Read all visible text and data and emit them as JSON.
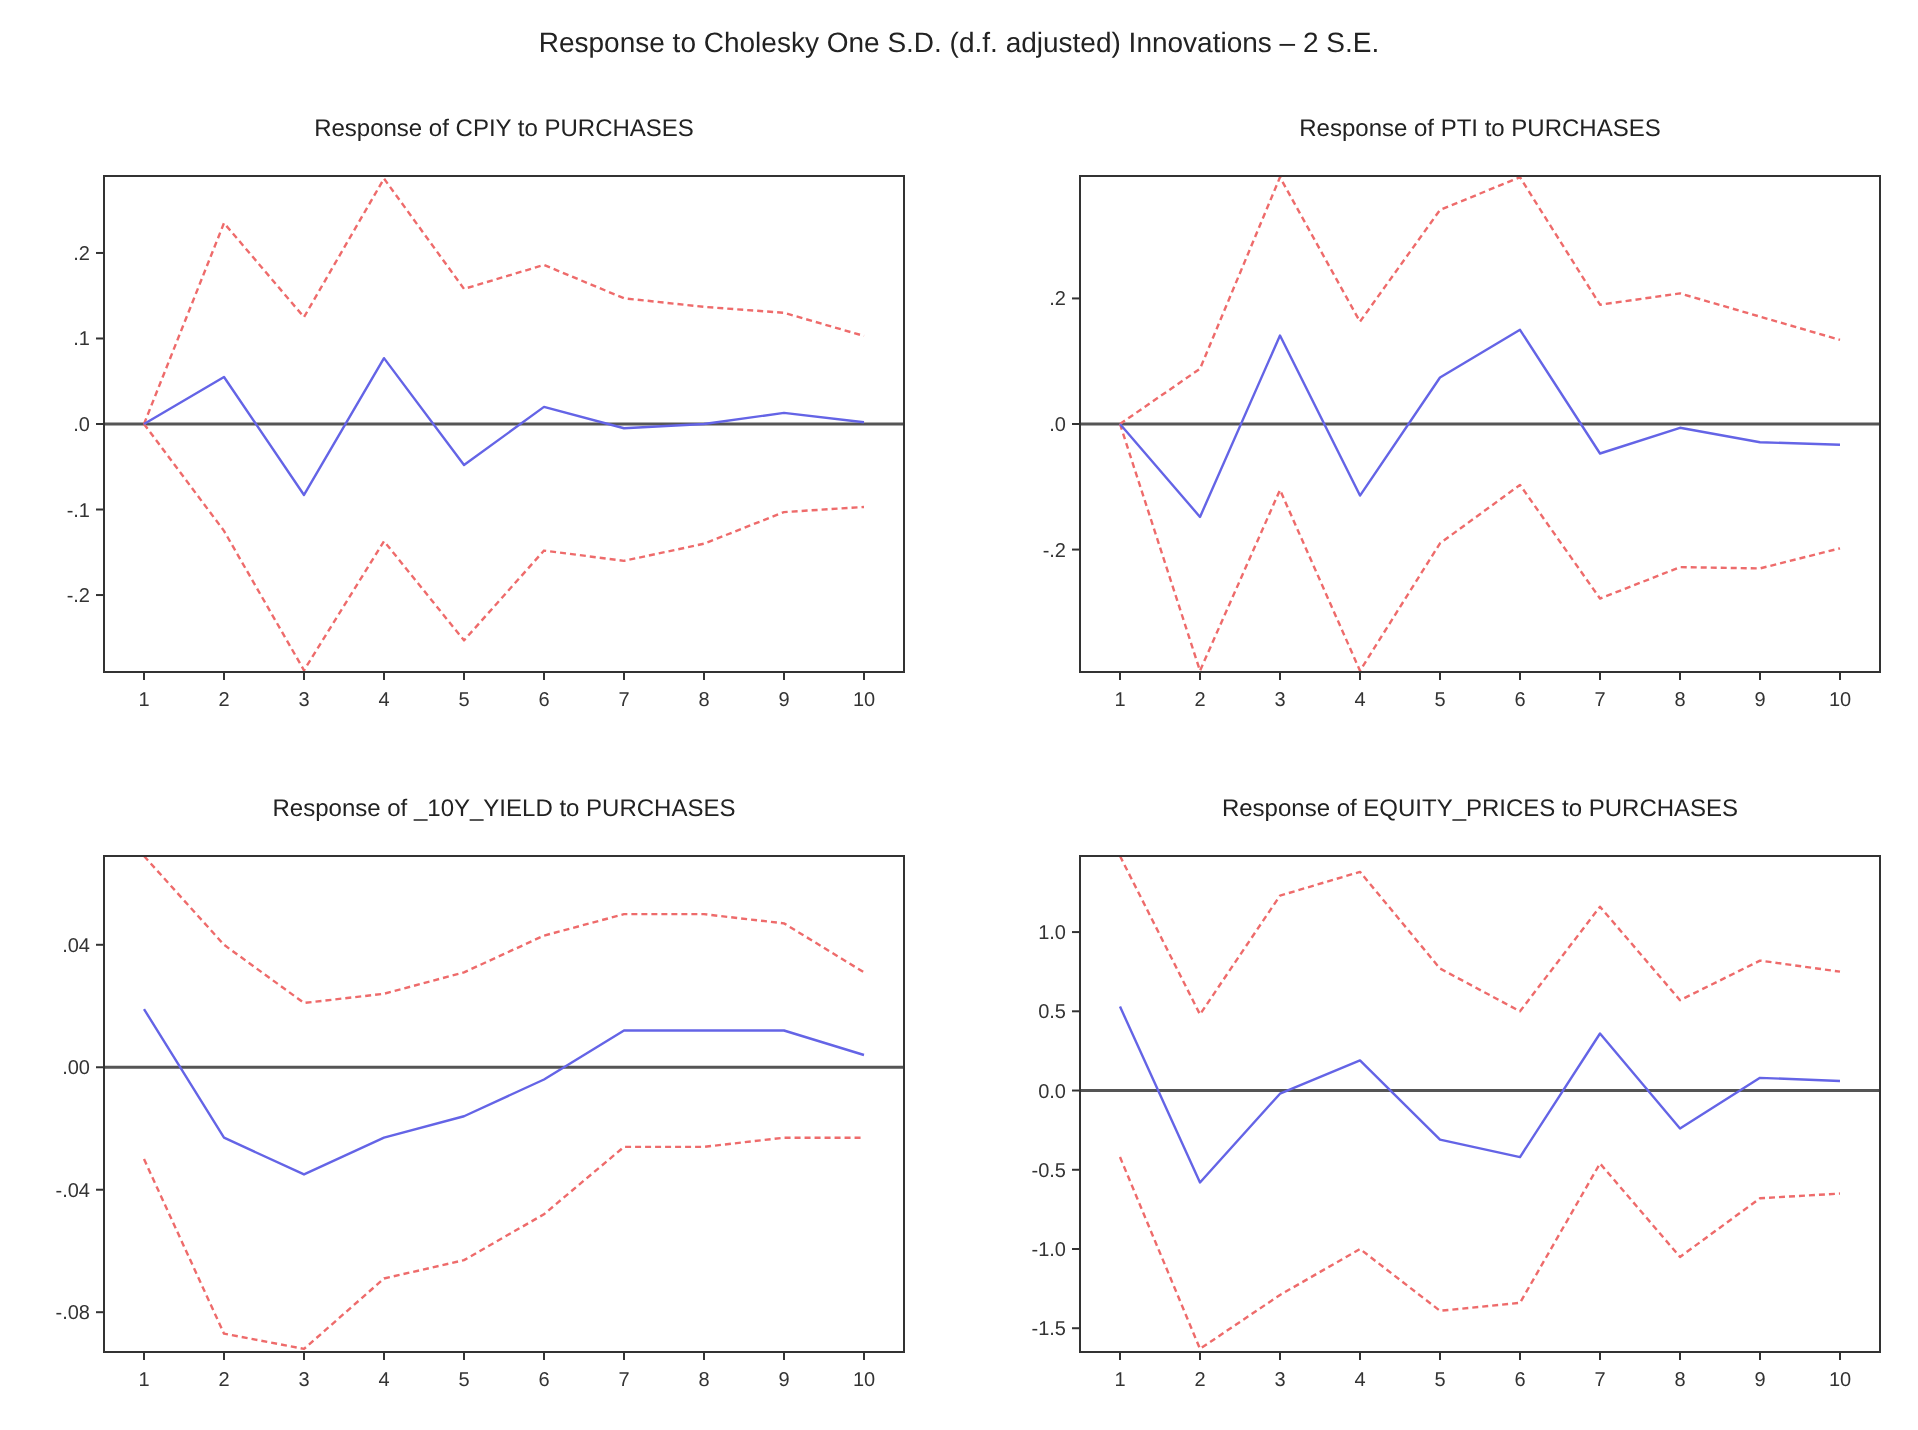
{
  "chart_data": [
    {
      "type": "other",
      "title": "Response to Cholesky One S.D. (d.f. adjusted) Innovations – 2 S.E."
    },
    {
      "type": "line",
      "title": "Response of CPIY to PURCHASES",
      "x": [
        1,
        2,
        3,
        4,
        5,
        6,
        7,
        8,
        9,
        10
      ],
      "xlim": [
        0.5,
        10.5
      ],
      "xticks": [
        1,
        2,
        3,
        4,
        5,
        6,
        7,
        8,
        9,
        10
      ],
      "ylim": [
        -0.29,
        0.29
      ],
      "yticks": [
        {
          "value": -0.2,
          "label": "-.2"
        },
        {
          "value": -0.1,
          "label": "-.1"
        },
        {
          "value": 0,
          "label": ".0"
        },
        {
          "value": 0.1,
          "label": ".1"
        },
        {
          "value": 0.2,
          "label": ".2"
        }
      ],
      "grid": false,
      "ref_lines": [
        {
          "axis": "y",
          "value": 0,
          "color": "#555555"
        }
      ],
      "series": [
        {
          "color": "#ee6b6b",
          "line_style": "dashed",
          "values": [
            0,
            0.235,
            0.125,
            0.287,
            0.158,
            0.186,
            0.147,
            0.137,
            0.13,
            0.103
          ]
        },
        {
          "color": "#ee6b6b",
          "line_style": "dashed",
          "values": [
            0,
            -0.125,
            -0.288,
            -0.137,
            -0.253,
            -0.148,
            -0.16,
            -0.14,
            -0.103,
            -0.097
          ]
        },
        {
          "color": "#6464e6",
          "line_style": "solid",
          "values": [
            0,
            0.055,
            -0.083,
            0.077,
            -0.048,
            0.02,
            -0.005,
            0,
            0.013,
            0.002
          ]
        }
      ]
    },
    {
      "type": "line",
      "title": "Response of PTI to PURCHASES",
      "x": [
        1,
        2,
        3,
        4,
        5,
        6,
        7,
        8,
        9,
        10
      ],
      "xlim": [
        0.5,
        10.5
      ],
      "xticks": [
        1,
        2,
        3,
        4,
        5,
        6,
        7,
        8,
        9,
        10
      ],
      "ylim": [
        -0.395,
        0.395
      ],
      "yticks": [
        {
          "value": -0.2,
          "label": "-.2"
        },
        {
          "value": 0,
          "label": ".0"
        },
        {
          "value": 0.2,
          "label": ".2"
        }
      ],
      "grid": false,
      "ref_lines": [
        {
          "axis": "y",
          "value": 0,
          "color": "#555555"
        }
      ],
      "series": [
        {
          "color": "#ee6b6b",
          "line_style": "dashed",
          "values": [
            0,
            0.088,
            0.393,
            0.163,
            0.341,
            0.393,
            0.19,
            0.208,
            0.171,
            0.134
          ]
        },
        {
          "color": "#ee6b6b",
          "line_style": "dashed",
          "values": [
            0,
            -0.393,
            -0.105,
            -0.393,
            -0.19,
            -0.097,
            -0.278,
            -0.228,
            -0.23,
            -0.198
          ]
        },
        {
          "color": "#6464e6",
          "line_style": "solid",
          "values": [
            0,
            -0.148,
            0.141,
            -0.114,
            0.074,
            0.15,
            -0.047,
            -0.006,
            -0.029,
            -0.033
          ]
        }
      ]
    },
    {
      "type": "line",
      "title": "Response of _10Y_YIELD to PURCHASES",
      "x": [
        1,
        2,
        3,
        4,
        5,
        6,
        7,
        8,
        9,
        10
      ],
      "xlim": [
        0.5,
        10.5
      ],
      "xticks": [
        1,
        2,
        3,
        4,
        5,
        6,
        7,
        8,
        9,
        10
      ],
      "ylim": [
        -0.093,
        0.069
      ],
      "yticks": [
        {
          "value": -0.08,
          "label": "-.08"
        },
        {
          "value": -0.04,
          "label": "-.04"
        },
        {
          "value": 0,
          "label": ".00"
        },
        {
          "value": 0.04,
          "label": ".04"
        }
      ],
      "grid": false,
      "ref_lines": [
        {
          "axis": "y",
          "value": 0,
          "color": "#555555"
        }
      ],
      "series": [
        {
          "color": "#ee6b6b",
          "line_style": "dashed",
          "values": [
            0.069,
            0.04,
            0.021,
            0.024,
            0.031,
            0.043,
            0.05,
            0.05,
            0.047,
            0.031
          ]
        },
        {
          "color": "#ee6b6b",
          "line_style": "dashed",
          "values": [
            -0.03,
            -0.087,
            -0.092,
            -0.069,
            -0.063,
            -0.048,
            -0.026,
            -0.026,
            -0.023,
            -0.023
          ]
        },
        {
          "color": "#6464e6",
          "line_style": "solid",
          "values": [
            0.019,
            -0.023,
            -0.035,
            -0.023,
            -0.016,
            -0.004,
            0.012,
            0.012,
            0.012,
            0.004
          ]
        }
      ]
    },
    {
      "type": "line",
      "title": "Response of EQUITY_PRICES to PURCHASES",
      "x": [
        1,
        2,
        3,
        4,
        5,
        6,
        7,
        8,
        9,
        10
      ],
      "xlim": [
        0.5,
        10.5
      ],
      "xticks": [
        1,
        2,
        3,
        4,
        5,
        6,
        7,
        8,
        9,
        10
      ],
      "ylim": [
        -1.65,
        1.48
      ],
      "yticks": [
        {
          "value": -1.5,
          "label": "-1.5"
        },
        {
          "value": -1,
          "label": "-1.0"
        },
        {
          "value": -0.5,
          "label": "-0.5"
        },
        {
          "value": 0,
          "label": "0.0"
        },
        {
          "value": 0.5,
          "label": "0.5"
        },
        {
          "value": 1,
          "label": "1.0"
        }
      ],
      "grid": false,
      "ref_lines": [
        {
          "axis": "y",
          "value": 0,
          "color": "#555555"
        }
      ],
      "series": [
        {
          "color": "#ee6b6b",
          "line_style": "dashed",
          "values": [
            1.48,
            0.48,
            1.23,
            1.38,
            0.77,
            0.5,
            1.16,
            0.57,
            0.82,
            0.75
          ]
        },
        {
          "color": "#ee6b6b",
          "line_style": "dashed",
          "values": [
            -0.42,
            -1.63,
            -1.29,
            -1.0,
            -1.39,
            -1.34,
            -0.46,
            -1.05,
            -0.68,
            -0.65
          ]
        },
        {
          "color": "#6464e6",
          "line_style": "solid",
          "values": [
            0.53,
            -0.58,
            -0.02,
            0.19,
            -0.31,
            -0.42,
            0.36,
            -0.24,
            0.08,
            0.06
          ]
        }
      ]
    }
  ]
}
